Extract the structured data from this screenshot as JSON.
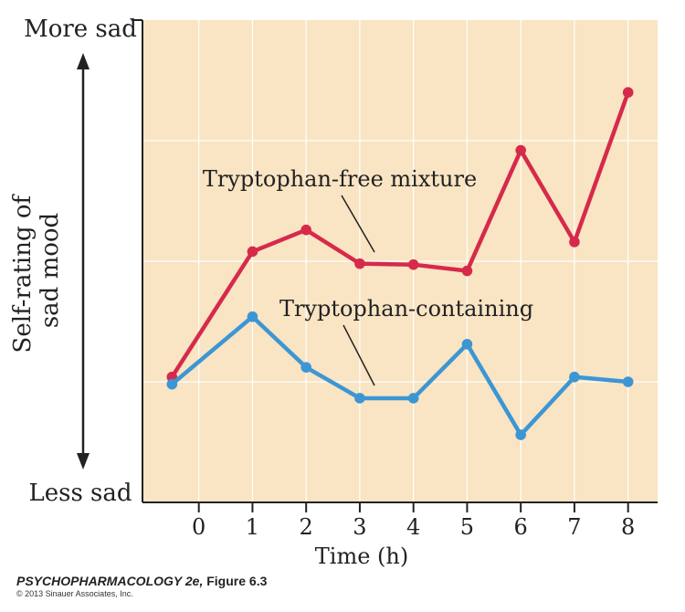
{
  "chart_data": {
    "type": "line",
    "x": [
      -0.5,
      1,
      2,
      3,
      4,
      5,
      6,
      7,
      8
    ],
    "x_ticks": [
      0,
      1,
      2,
      3,
      4,
      5,
      6,
      7,
      8
    ],
    "xlabel": "Time (h)",
    "ylabel_lines": [
      "Self-rating of",
      "sad mood"
    ],
    "y_top_label": "More sad",
    "y_bottom_label": "Less sad",
    "xlim": [
      -1.05,
      8.55
    ],
    "ylim": [
      0,
      100
    ],
    "grid": true,
    "series": [
      {
        "name": "Tryptophan-free mixture",
        "color": "#d62a4b",
        "values": [
          26,
          52,
          56.5,
          49.5,
          49.3,
          48,
          73,
          54,
          85
        ]
      },
      {
        "name": "Tryptophan-containing",
        "color": "#3d96d4",
        "values": [
          24.5,
          38.5,
          28,
          21.6,
          21.6,
          32.8,
          14,
          26,
          25
        ]
      }
    ]
  },
  "caption": {
    "title_italic": "PSYCHOPHARMACOLOGY 2e,",
    "title_rest": "Figure 6.3",
    "copyright": "© 2013 Sinauer Associates, Inc."
  },
  "colors": {
    "plot_background": "#f9e4c3",
    "axis": "#222222",
    "grid": "#ffffff"
  }
}
